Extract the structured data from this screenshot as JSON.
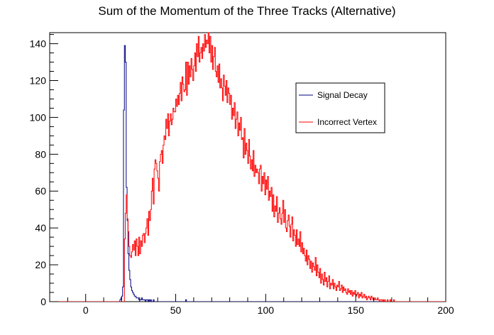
{
  "chart_data": {
    "type": "line",
    "title": "Sum of the Momentum of the Three Tracks (Alternative)",
    "xlabel": "",
    "ylabel": "",
    "xlim": [
      -20,
      200
    ],
    "ylim": [
      0,
      146
    ],
    "xticks": [
      0,
      50,
      100,
      150,
      200
    ],
    "yticks": [
      0,
      20,
      40,
      60,
      80,
      100,
      120,
      140
    ],
    "grid": false,
    "legend_placement": "top-right",
    "bin_width": 0.5,
    "series": [
      {
        "name": "Signal Decay",
        "color": "#000080",
        "start": -20,
        "values": [
          0,
          0,
          0,
          0,
          0,
          0,
          0,
          0,
          0,
          0,
          0,
          0,
          0,
          0,
          0,
          0,
          0,
          0,
          0,
          0,
          0,
          0,
          0,
          0,
          0,
          0,
          0,
          0,
          0,
          0,
          0,
          0,
          0,
          0,
          0,
          0,
          0,
          0,
          0,
          0,
          0,
          0,
          0,
          0,
          0,
          0,
          0,
          0,
          0,
          0,
          0,
          0,
          0,
          0,
          0,
          0,
          0,
          0,
          0,
          0,
          0,
          0,
          0,
          0,
          0,
          0,
          0,
          0,
          0,
          0,
          0,
          0,
          0,
          0,
          0,
          0,
          0,
          0,
          1,
          2,
          3,
          8,
          104,
          139,
          130,
          62,
          44,
          26,
          17,
          12,
          8,
          6,
          5,
          4,
          3,
          3,
          2,
          2,
          2,
          1,
          1,
          1,
          2,
          1,
          1,
          1,
          0,
          1,
          1,
          0,
          1,
          0,
          1,
          0,
          0,
          1,
          0,
          0,
          0,
          0,
          0,
          0,
          0,
          0,
          0,
          0,
          0,
          0,
          0,
          0,
          0,
          0,
          0,
          0,
          0,
          0,
          0,
          0,
          0,
          0,
          0,
          0,
          0,
          0,
          0,
          0,
          0,
          0,
          0,
          0,
          0,
          1,
          0,
          0,
          0,
          0,
          0,
          0,
          0,
          0
        ]
      },
      {
        "name": "Incorrect Vertex",
        "color": "#ff0000",
        "start": -20,
        "values": [
          0,
          0,
          0,
          0,
          0,
          0,
          0,
          0,
          0,
          0,
          0,
          0,
          0,
          0,
          0,
          0,
          0,
          0,
          0,
          0,
          0,
          0,
          0,
          0,
          0,
          0,
          0,
          0,
          0,
          0,
          0,
          0,
          0,
          0,
          0,
          0,
          0,
          0,
          0,
          0,
          0,
          0,
          0,
          0,
          0,
          0,
          0,
          0,
          0,
          0,
          0,
          0,
          0,
          0,
          0,
          0,
          0,
          0,
          0,
          0,
          0,
          0,
          0,
          0,
          0,
          0,
          0,
          0,
          0,
          0,
          0,
          0,
          0,
          0,
          0,
          0,
          0,
          0,
          0,
          0,
          0,
          0,
          0,
          34,
          48,
          58,
          45,
          38,
          30,
          25,
          24,
          27,
          31,
          28,
          33,
          25,
          34,
          30,
          25,
          35,
          26,
          33,
          30,
          36,
          37,
          32,
          37,
          40,
          45,
          36,
          49,
          44,
          50,
          60,
          67,
          53,
          72,
          77,
          75,
          71,
          67,
          60,
          76,
          80,
          82,
          75,
          85,
          90,
          88,
          99,
          94,
          102,
          90,
          98,
          102,
          96,
          99,
          105,
          103,
          103,
          110,
          106,
          112,
          107,
          113,
          119,
          109,
          122,
          118,
          114,
          115,
          130,
          112,
          130,
          118,
          128,
          122,
          132,
          126,
          120,
          128,
          135,
          125,
          140,
          133,
          144,
          130,
          135,
          138,
          132,
          140,
          136,
          145,
          138,
          142,
          140,
          146,
          135,
          144,
          130,
          139,
          126,
          133,
          138,
          125,
          122,
          128,
          119,
          129,
          116,
          121,
          116,
          109,
          123,
          117,
          112,
          120,
          108,
          116,
          113,
          107,
          112,
          99,
          105,
          101,
          108,
          94,
          99,
          103,
          90,
          97,
          93,
          100,
          88,
          89,
          78,
          94,
          80,
          86,
          82,
          75,
          88,
          79,
          72,
          77,
          71,
          82,
          68,
          74,
          70,
          72,
          70,
          64,
          72,
          74,
          60,
          68,
          64,
          70,
          58,
          66,
          61,
          68,
          55,
          60,
          57,
          62,
          49,
          58,
          46,
          52,
          49,
          57,
          43,
          48,
          51,
          45,
          42,
          48,
          55,
          43,
          50,
          40,
          38,
          44,
          47,
          41,
          35,
          42,
          46,
          33,
          39,
          36,
          30,
          39,
          31,
          34,
          30,
          38,
          27,
          32,
          26,
          29,
          25,
          22,
          28,
          20,
          25,
          23,
          18,
          22,
          16,
          21,
          19,
          17,
          24,
          14,
          20,
          16,
          13,
          18,
          10,
          15,
          12,
          9,
          16,
          11,
          13,
          8,
          11,
          14,
          7,
          10,
          9,
          12,
          7,
          10,
          8,
          6,
          9,
          8,
          11,
          6,
          7,
          9,
          5,
          8,
          6,
          7,
          5,
          4,
          7,
          5,
          6,
          4,
          6,
          3,
          5,
          4,
          6,
          3,
          4,
          5,
          2,
          4,
          3,
          5,
          2,
          3,
          4,
          2,
          3,
          1,
          2,
          3,
          2,
          1,
          3,
          2,
          1,
          1,
          2,
          1,
          1,
          2,
          1,
          0,
          1,
          1,
          0,
          1,
          0,
          1,
          0,
          0,
          1,
          0,
          0,
          1,
          0,
          0,
          0,
          1,
          0,
          0,
          0,
          0,
          0,
          0,
          0,
          0,
          0,
          0,
          0,
          0,
          0,
          0,
          0,
          0,
          0,
          0,
          0,
          0,
          0,
          0,
          0,
          0,
          0,
          0,
          0,
          0,
          0,
          0,
          0,
          0,
          0,
          0,
          0,
          0,
          0,
          0,
          0,
          0,
          0,
          0,
          0,
          0,
          0,
          0,
          0,
          0,
          0,
          0,
          0,
          0,
          0,
          0,
          0,
          0,
          0,
          0,
          0,
          0,
          0,
          0,
          0,
          0,
          0,
          0,
          0,
          0,
          0,
          0,
          0,
          0,
          0,
          0,
          0,
          0,
          0,
          0,
          0,
          0,
          0,
          0,
          0,
          0,
          0,
          0,
          0
        ]
      }
    ],
    "legend": [
      {
        "label": "Signal Decay",
        "color": "#000080"
      },
      {
        "label": "Incorrect Vertex",
        "color": "#ff0000"
      }
    ]
  }
}
